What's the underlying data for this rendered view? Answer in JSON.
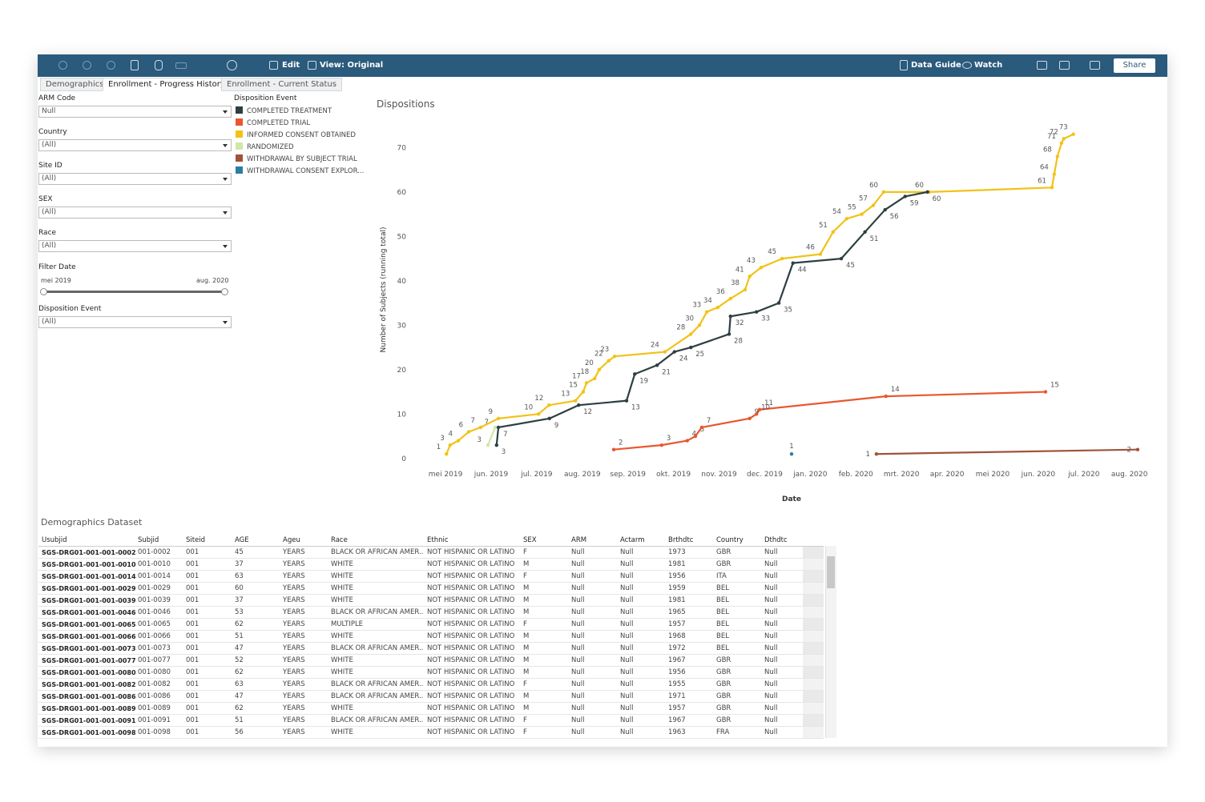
{
  "toolbar": {
    "edit": "Edit",
    "view": "View: Original",
    "data_guide": "Data Guide",
    "watch": "Watch",
    "share": "Share"
  },
  "tabs": [
    "Demographics",
    "Enrollment - Progress History",
    "Enrollment - Current Status"
  ],
  "filters": [
    {
      "label": "ARM Code",
      "value": "Null"
    },
    {
      "label": "Country",
      "value": "(All)"
    },
    {
      "label": "Site ID",
      "value": "(All)"
    },
    {
      "label": "SEX",
      "value": "(All)"
    },
    {
      "label": "Race",
      "value": "(All)"
    }
  ],
  "date_filter": {
    "label": "Filter Date",
    "start": "mei 2019",
    "end": "aug. 2020"
  },
  "event_filter": {
    "label": "Disposition Event",
    "value": "(All)"
  },
  "chart_data": {
    "type": "line",
    "title": "Dispositions",
    "legend_title": "Disposition Event",
    "y_label": "Number of Subjects (running total)",
    "x_label": "Date",
    "xlim": [
      -0.37,
      15.62
    ],
    "xticks": [
      {
        "value": 0,
        "label": "mei 2019"
      },
      {
        "value": 1,
        "label": "jun. 2019"
      },
      {
        "value": 2,
        "label": "jul. 2019"
      },
      {
        "value": 3,
        "label": "aug. 2019"
      },
      {
        "value": 4,
        "label": "sep. 2019"
      },
      {
        "value": 5,
        "label": "okt. 2019"
      },
      {
        "value": 6,
        "label": "nov. 2019"
      },
      {
        "value": 7,
        "label": "dec. 2019"
      },
      {
        "value": 8,
        "label": "jan. 2020"
      },
      {
        "value": 9,
        "label": "feb. 2020"
      },
      {
        "value": 10,
        "label": "mrt. 2020"
      },
      {
        "value": 11,
        "label": "apr. 2020"
      },
      {
        "value": 12,
        "label": "mei 2020"
      },
      {
        "value": 13,
        "label": "jun. 2020"
      },
      {
        "value": 14,
        "label": "jul. 2020"
      },
      {
        "value": 15,
        "label": "aug. 2020"
      }
    ],
    "ylim": [
      -1.3,
      78
    ],
    "yticks": [
      0,
      10,
      20,
      30,
      40,
      50,
      60,
      70
    ],
    "series": [
      {
        "name": "COMPLETED TREATMENT",
        "color": "#2d3f41",
        "x": [
          1.12,
          1.16,
          2.28,
          2.92,
          3.97,
          4.15,
          4.64,
          5.02,
          5.38,
          6.22,
          6.25,
          6.82,
          7.31,
          7.62,
          8.68,
          9.2,
          9.64,
          10.08,
          10.57
        ],
        "values": [
          3,
          7,
          9,
          12,
          13,
          19,
          21,
          24,
          25,
          28,
          32,
          33,
          35,
          44,
          45,
          51,
          56,
          59,
          60
        ]
      },
      {
        "name": "COMPLETED TRIAL",
        "color": "#e8572f",
        "x": [
          3.69,
          4.74,
          5.3,
          5.48,
          5.62,
          6.67,
          6.82,
          6.89,
          9.66,
          13.16
        ],
        "values": [
          2,
          3,
          4,
          5,
          7,
          9,
          10,
          11,
          14,
          15
        ]
      },
      {
        "name": "INFORMED CONSENT OBTAINED",
        "color": "#f2c218",
        "x": [
          0.02,
          0.1,
          0.28,
          0.51,
          0.77,
          1.16,
          2.04,
          2.27,
          2.85,
          3.02,
          3.09,
          3.27,
          3.37,
          3.58,
          3.71,
          4.81,
          5.38,
          5.57,
          5.73,
          5.97,
          6.25,
          6.57,
          6.67,
          6.92,
          7.38,
          8.22,
          8.5,
          8.8,
          9.13,
          9.38,
          9.61,
          10.61,
          13.3,
          13.35,
          13.42,
          13.51,
          13.56,
          13.77
        ],
        "values": [
          1,
          3,
          4,
          6,
          7,
          9,
          10,
          12,
          13,
          15,
          17,
          18,
          20,
          22,
          23,
          24,
          28,
          30,
          33,
          34,
          36,
          38,
          41,
          43,
          45,
          46,
          51,
          54,
          55,
          57,
          60,
          60,
          61,
          64,
          68,
          71,
          72,
          73
        ]
      },
      {
        "name": "RANDOMIZED",
        "color": "#cfe8a6",
        "x": [
          0.93,
          1.09
        ],
        "values": [
          3,
          7
        ]
      },
      {
        "name": "WITHDRAWAL BY SUBJECT TRIAL",
        "color": "#a0533b",
        "x": [
          9.45,
          15.18
        ],
        "values": [
          1,
          2
        ]
      },
      {
        "name": "WITHDRAWAL CONSENT EXPLOR...",
        "color": "#2b7ea1",
        "x": [
          7.59
        ],
        "values": [
          1
        ]
      }
    ]
  },
  "table": {
    "title": "Demographics Dataset",
    "headers": [
      "Usubjid",
      "Subjid",
      "Siteid",
      "AGE",
      "Ageu",
      "Race",
      "Ethnic",
      "SEX",
      "ARM",
      "Actarm",
      "Brthdtc",
      "Country",
      "Dthdtc"
    ],
    "rows": [
      [
        "SGS-DRG01-001-001-0002",
        "001-0002",
        "001",
        "45",
        "YEARS",
        "BLACK OR AFRICAN AMER..",
        "NOT HISPANIC OR LATINO",
        "F",
        "Null",
        "Null",
        "1973",
        "GBR",
        "Null"
      ],
      [
        "SGS-DRG01-001-001-0010",
        "001-0010",
        "001",
        "37",
        "YEARS",
        "WHITE",
        "NOT HISPANIC OR LATINO",
        "M",
        "Null",
        "Null",
        "1981",
        "GBR",
        "Null"
      ],
      [
        "SGS-DRG01-001-001-0014",
        "001-0014",
        "001",
        "63",
        "YEARS",
        "WHITE",
        "NOT HISPANIC OR LATINO",
        "F",
        "Null",
        "Null",
        "1956",
        "ITA",
        "Null"
      ],
      [
        "SGS-DRG01-001-001-0029",
        "001-0029",
        "001",
        "60",
        "YEARS",
        "WHITE",
        "NOT HISPANIC OR LATINO",
        "M",
        "Null",
        "Null",
        "1959",
        "BEL",
        "Null"
      ],
      [
        "SGS-DRG01-001-001-0039",
        "001-0039",
        "001",
        "37",
        "YEARS",
        "WHITE",
        "NOT HISPANIC OR LATINO",
        "M",
        "Null",
        "Null",
        "1981",
        "BEL",
        "Null"
      ],
      [
        "SGS-DRG01-001-001-0046",
        "001-0046",
        "001",
        "53",
        "YEARS",
        "BLACK OR AFRICAN AMER..",
        "NOT HISPANIC OR LATINO",
        "M",
        "Null",
        "Null",
        "1965",
        "BEL",
        "Null"
      ],
      [
        "SGS-DRG01-001-001-0065",
        "001-0065",
        "001",
        "62",
        "YEARS",
        "MULTIPLE",
        "NOT HISPANIC OR LATINO",
        "F",
        "Null",
        "Null",
        "1957",
        "BEL",
        "Null"
      ],
      [
        "SGS-DRG01-001-001-0066",
        "001-0066",
        "001",
        "51",
        "YEARS",
        "WHITE",
        "NOT HISPANIC OR LATINO",
        "M",
        "Null",
        "Null",
        "1968",
        "BEL",
        "Null"
      ],
      [
        "SGS-DRG01-001-001-0073",
        "001-0073",
        "001",
        "47",
        "YEARS",
        "BLACK OR AFRICAN AMER..",
        "NOT HISPANIC OR LATINO",
        "M",
        "Null",
        "Null",
        "1972",
        "BEL",
        "Null"
      ],
      [
        "SGS-DRG01-001-001-0077",
        "001-0077",
        "001",
        "52",
        "YEARS",
        "WHITE",
        "NOT HISPANIC OR LATINO",
        "M",
        "Null",
        "Null",
        "1967",
        "GBR",
        "Null"
      ],
      [
        "SGS-DRG01-001-001-0080",
        "001-0080",
        "001",
        "62",
        "YEARS",
        "WHITE",
        "NOT HISPANIC OR LATINO",
        "M",
        "Null",
        "Null",
        "1956",
        "GBR",
        "Null"
      ],
      [
        "SGS-DRG01-001-001-0082",
        "001-0082",
        "001",
        "63",
        "YEARS",
        "BLACK OR AFRICAN AMER..",
        "NOT HISPANIC OR LATINO",
        "F",
        "Null",
        "Null",
        "1955",
        "GBR",
        "Null"
      ],
      [
        "SGS-DRG01-001-001-0086",
        "001-0086",
        "001",
        "47",
        "YEARS",
        "BLACK OR AFRICAN AMER..",
        "NOT HISPANIC OR LATINO",
        "M",
        "Null",
        "Null",
        "1971",
        "GBR",
        "Null"
      ],
      [
        "SGS-DRG01-001-001-0089",
        "001-0089",
        "001",
        "62",
        "YEARS",
        "WHITE",
        "NOT HISPANIC OR LATINO",
        "M",
        "Null",
        "Null",
        "1957",
        "GBR",
        "Null"
      ],
      [
        "SGS-DRG01-001-001-0091",
        "001-0091",
        "001",
        "51",
        "YEARS",
        "BLACK OR AFRICAN AMER..",
        "NOT HISPANIC OR LATINO",
        "F",
        "Null",
        "Null",
        "1967",
        "GBR",
        "Null"
      ],
      [
        "SGS-DRG01-001-001-0098",
        "001-0098",
        "001",
        "56",
        "YEARS",
        "WHITE",
        "NOT HISPANIC OR LATINO",
        "F",
        "Null",
        "Null",
        "1963",
        "FRA",
        "Null"
      ]
    ]
  }
}
